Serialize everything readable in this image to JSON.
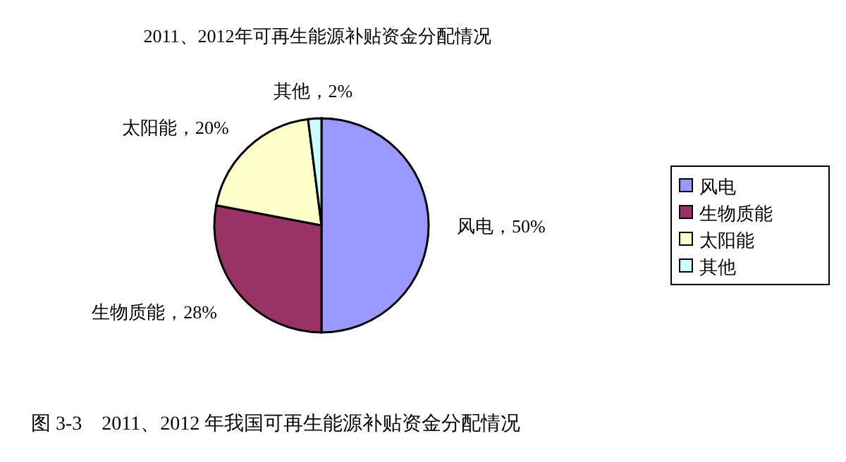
{
  "chart_data": {
    "type": "pie",
    "title": "2011、2012年可再生能源补贴资金分配情况",
    "categories": [
      "风电",
      "生物质能",
      "太阳能",
      "其他"
    ],
    "values": [
      50,
      28,
      20,
      2
    ],
    "colors": [
      "#9999ff",
      "#993366",
      "#ffffcc",
      "#ccffff"
    ],
    "value_labels": [
      "风电，50%",
      "生物质能，28%",
      "太阳能，20%",
      "其他，2%"
    ],
    "legend": "right",
    "annotations": [
      "图 3-3　2011、2012 年我国可再生能源补贴资金分配情况"
    ]
  }
}
